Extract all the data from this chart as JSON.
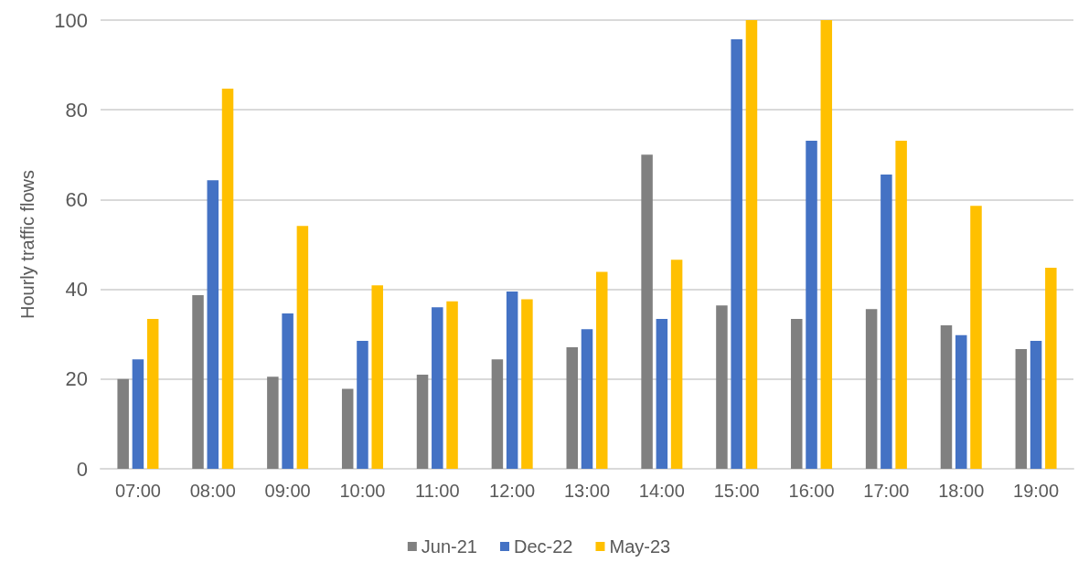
{
  "chart_data": {
    "type": "bar",
    "ylabel": "Hourly traffic flows",
    "categories": [
      "07:00",
      "08:00",
      "09:00",
      "10:00",
      "11:00",
      "12:00",
      "13:00",
      "14:00",
      "15:00",
      "16:00",
      "17:00",
      "18:00",
      "19:00"
    ],
    "series": [
      {
        "name": "Jun-21",
        "color": "#808080",
        "values": [
          20,
          38.7,
          20.5,
          17.8,
          21,
          24.4,
          27.1,
          70,
          36.4,
          33.4,
          35.6,
          32,
          26.7
        ]
      },
      {
        "name": "Dec-22",
        "color": "#4472c4",
        "values": [
          24.4,
          64.3,
          34.6,
          28.5,
          36,
          39.5,
          31.1,
          33.4,
          95.7,
          73.1,
          65.6,
          29.8,
          28.5
        ]
      },
      {
        "name": "May-23",
        "color": "#ffc000",
        "values": [
          33.4,
          84.7,
          54.1,
          40.9,
          37.3,
          37.8,
          43.9,
          46.6,
          100,
          100,
          73.1,
          58.6,
          44.8
        ]
      }
    ],
    "ylim": [
      0,
      100
    ],
    "yticks": [
      0,
      20,
      40,
      60,
      80,
      100
    ],
    "grid": "y",
    "legend": "bottom"
  }
}
